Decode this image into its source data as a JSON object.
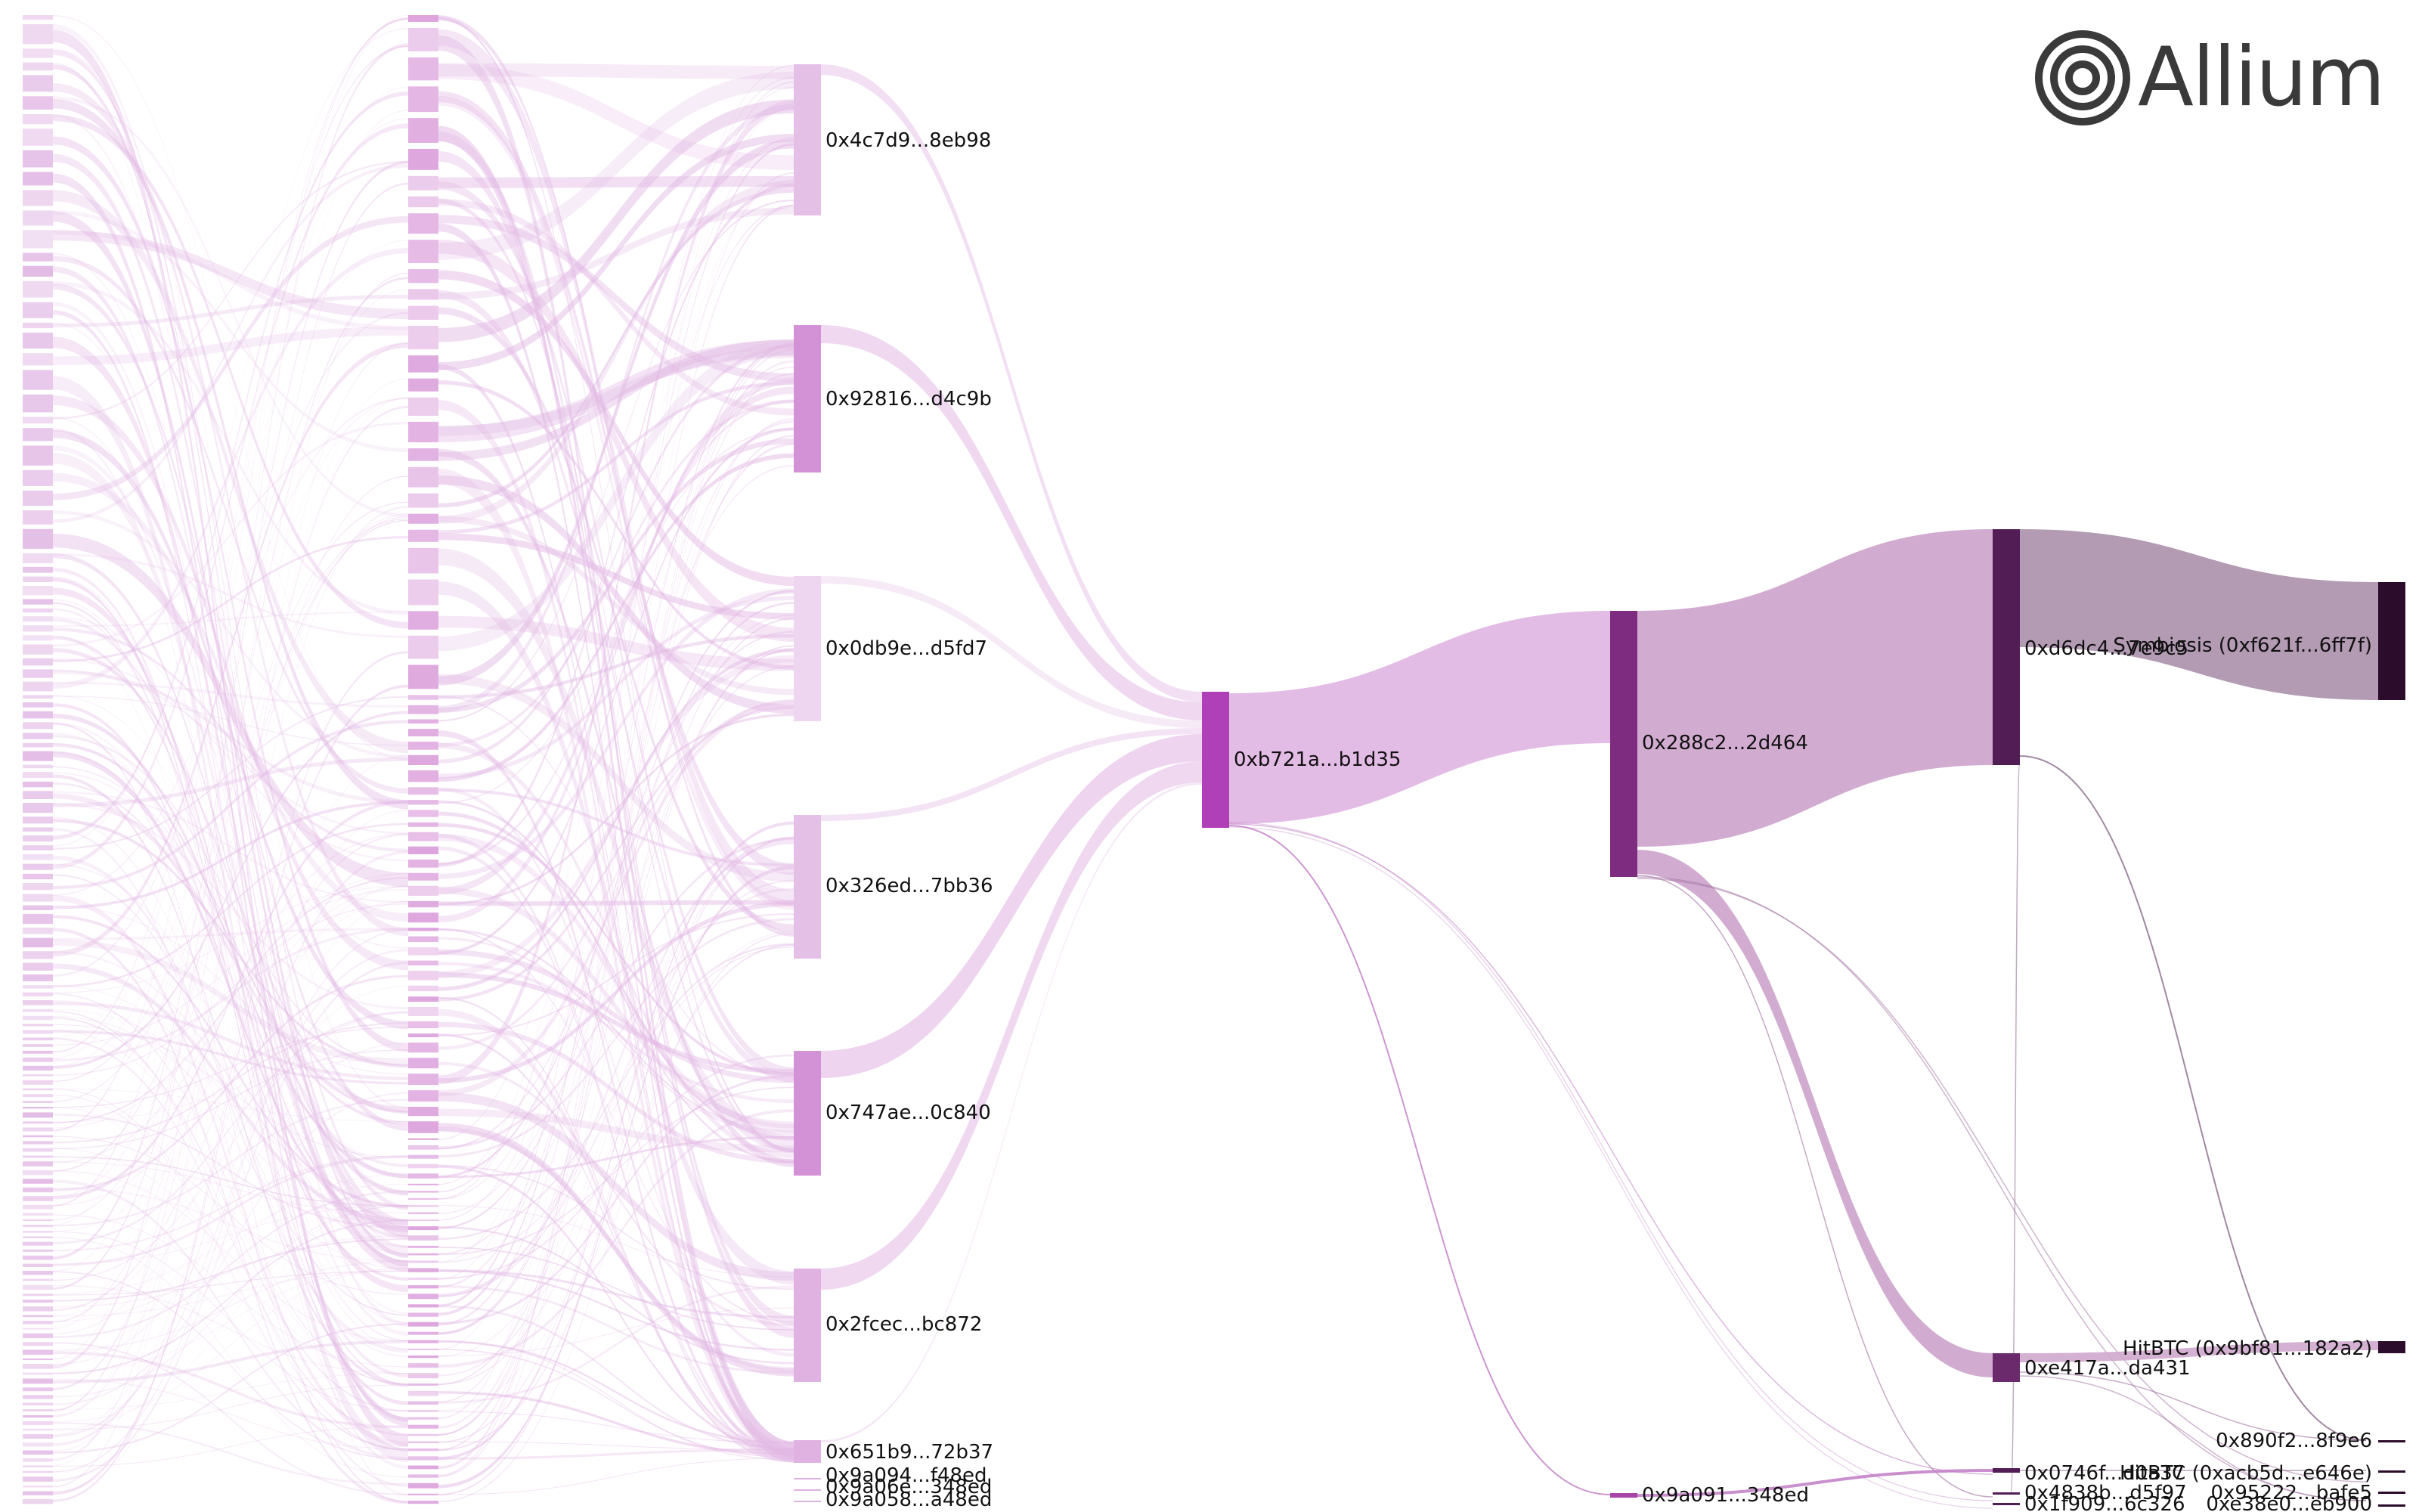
{
  "brand": {
    "name": "Allium",
    "logo_icon": "concentric-rings-logo-icon",
    "color": "#3a3a3a"
  },
  "colors": {
    "stage0": "#d9a5dd",
    "stage1": "#d99ad9",
    "stage2": "#cc7fcf",
    "hub": "#b040b8",
    "mid": "#7d2c80",
    "deep": "#521d55",
    "end": "#2b0c2b",
    "link_light": "#e2b8e4",
    "link_mid": "#cfa8cd",
    "link_dark": "#a68aa6"
  },
  "nodes": [
    {
      "id": "a1",
      "label": "0x4c7d9...8eb98",
      "stage": 2
    },
    {
      "id": "a2",
      "label": "0x92816...d4c9b",
      "stage": 2
    },
    {
      "id": "a3",
      "label": "0x0db9e...d5fd7",
      "stage": 2
    },
    {
      "id": "a4",
      "label": "0x326ed...7bb36",
      "stage": 2
    },
    {
      "id": "a5",
      "label": "0x747ae...0c840",
      "stage": 2
    },
    {
      "id": "a6",
      "label": "0x2fcec...bc872",
      "stage": 2
    },
    {
      "id": "a7",
      "label": "0x651b9...72b37",
      "stage": 2
    },
    {
      "id": "a8",
      "label": "0x9a094...f48ed",
      "stage": 2
    },
    {
      "id": "a9",
      "label": "0x9a06e...348ed",
      "stage": 2
    },
    {
      "id": "a10",
      "label": "0x9a058...a48ed",
      "stage": 2
    },
    {
      "id": "hub",
      "label": "0xb721a...b1d35",
      "stage": 3
    },
    {
      "id": "n288",
      "label": "0x288c2...2d464",
      "stage": 4
    },
    {
      "id": "n9a091",
      "label": "0x9a091...348ed",
      "stage": 4
    },
    {
      "id": "nd6dc",
      "label": "0xd6dc4...7e9c5",
      "stage": 5
    },
    {
      "id": "ne417",
      "label": "0xe417a...da431",
      "stage": 5
    },
    {
      "id": "n0746",
      "label": "0x0746f...d0a37",
      "stage": 5
    },
    {
      "id": "n4838",
      "label": "0x4838b...d5f97",
      "stage": 5
    },
    {
      "id": "n1f909",
      "label": "0x1f909...6c326",
      "stage": 5
    },
    {
      "id": "symbiosis",
      "label": "Symbiosis (0xf621f...6ff7f)",
      "stage": 6
    },
    {
      "id": "hitbtc1",
      "label": "HitBTC (0x9bf81...182a2)",
      "stage": 6
    },
    {
      "id": "n890f",
      "label": "0x890f2...8f9e6",
      "stage": 6
    },
    {
      "id": "hitbtc2",
      "label": "HitBTC (0xacb5d...e646e)",
      "stage": 6
    },
    {
      "id": "n9522",
      "label": "0x95222...bafe5",
      "stage": 6
    },
    {
      "id": "ne38e",
      "label": "0xe38e0...eb900",
      "stage": 6
    }
  ],
  "links": [
    {
      "source": "a1",
      "target": "hub",
      "value": 6
    },
    {
      "source": "a2",
      "target": "hub",
      "value": 10
    },
    {
      "source": "a3",
      "target": "hub",
      "value": 4
    },
    {
      "source": "a4",
      "target": "hub",
      "value": 4
    },
    {
      "source": "a5",
      "target": "hub",
      "value": 24
    },
    {
      "source": "a6",
      "target": "hub",
      "value": 14
    },
    {
      "source": "a7",
      "target": "hub",
      "value": 1
    },
    {
      "source": "hub",
      "target": "n288",
      "value": 140
    },
    {
      "source": "hub",
      "target": "n9a091",
      "value": 1
    },
    {
      "source": "n288",
      "target": "nd6dc",
      "value": 245
    },
    {
      "source": "n288",
      "target": "ne417",
      "value": 30
    },
    {
      "source": "nd6dc",
      "target": "symbiosis",
      "value": 122
    },
    {
      "source": "ne417",
      "target": "hitbtc1",
      "value": 12
    },
    {
      "source": "n9a091",
      "target": "n0746",
      "value": 3
    },
    {
      "source": "nd6dc",
      "target": "n890f",
      "value": 1
    },
    {
      "source": "n0746",
      "target": "hitbtc2",
      "value": 2
    }
  ]
}
